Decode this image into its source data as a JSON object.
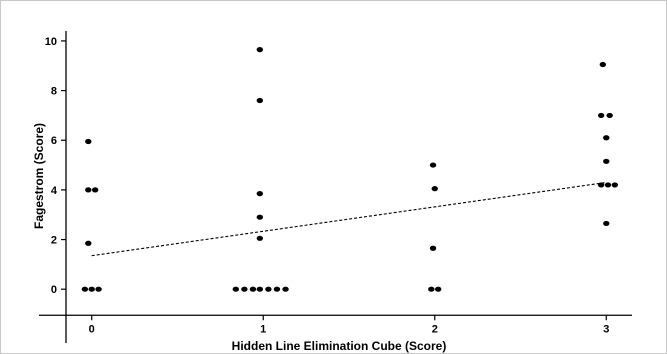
{
  "chart_data": {
    "type": "scatter",
    "title": "",
    "xlabel": "Hidden Line Elimination Cube (Score)",
    "ylabel": "Fagestrom (Score)",
    "xlim": [
      -0.15,
      3.15
    ],
    "ylim": [
      -1.2,
      10.4
    ],
    "x_ticks": [
      0,
      1,
      2,
      3
    ],
    "y_ticks": [
      0,
      2,
      4,
      6,
      8,
      10
    ],
    "grid": false,
    "legend": "none",
    "series": [
      {
        "points": [
          {
            "x": -0.04,
            "y": 0
          },
          {
            "x": 0.0,
            "y": 0
          },
          {
            "x": 0.04,
            "y": 0
          },
          {
            "x": -0.02,
            "y": 1.85
          },
          {
            "x": -0.02,
            "y": 4.0
          },
          {
            "x": 0.02,
            "y": 4.0
          },
          {
            "x": -0.02,
            "y": 5.95
          },
          {
            "x": 0.84,
            "y": 0
          },
          {
            "x": 0.89,
            "y": 0
          },
          {
            "x": 0.94,
            "y": 0
          },
          {
            "x": 0.98,
            "y": 0
          },
          {
            "x": 1.03,
            "y": 0
          },
          {
            "x": 1.08,
            "y": 0
          },
          {
            "x": 1.13,
            "y": 0
          },
          {
            "x": 0.98,
            "y": 2.05
          },
          {
            "x": 0.98,
            "y": 2.9
          },
          {
            "x": 0.98,
            "y": 3.85
          },
          {
            "x": 0.98,
            "y": 7.6
          },
          {
            "x": 0.98,
            "y": 9.65
          },
          {
            "x": 1.98,
            "y": 0
          },
          {
            "x": 2.02,
            "y": 0
          },
          {
            "x": 1.99,
            "y": 1.65
          },
          {
            "x": 2.0,
            "y": 4.05
          },
          {
            "x": 1.99,
            "y": 5.0
          },
          {
            "x": 3.0,
            "y": 2.65
          },
          {
            "x": 2.97,
            "y": 4.2
          },
          {
            "x": 3.01,
            "y": 4.2
          },
          {
            "x": 3.05,
            "y": 4.2
          },
          {
            "x": 3.0,
            "y": 5.15
          },
          {
            "x": 3.0,
            "y": 6.1
          },
          {
            "x": 2.97,
            "y": 7.0
          },
          {
            "x": 3.02,
            "y": 7.0
          },
          {
            "x": 2.98,
            "y": 9.05
          }
        ]
      }
    ],
    "trendline": {
      "style": "dashed",
      "x": [
        0,
        3
      ],
      "y": [
        1.35,
        4.3
      ]
    }
  }
}
